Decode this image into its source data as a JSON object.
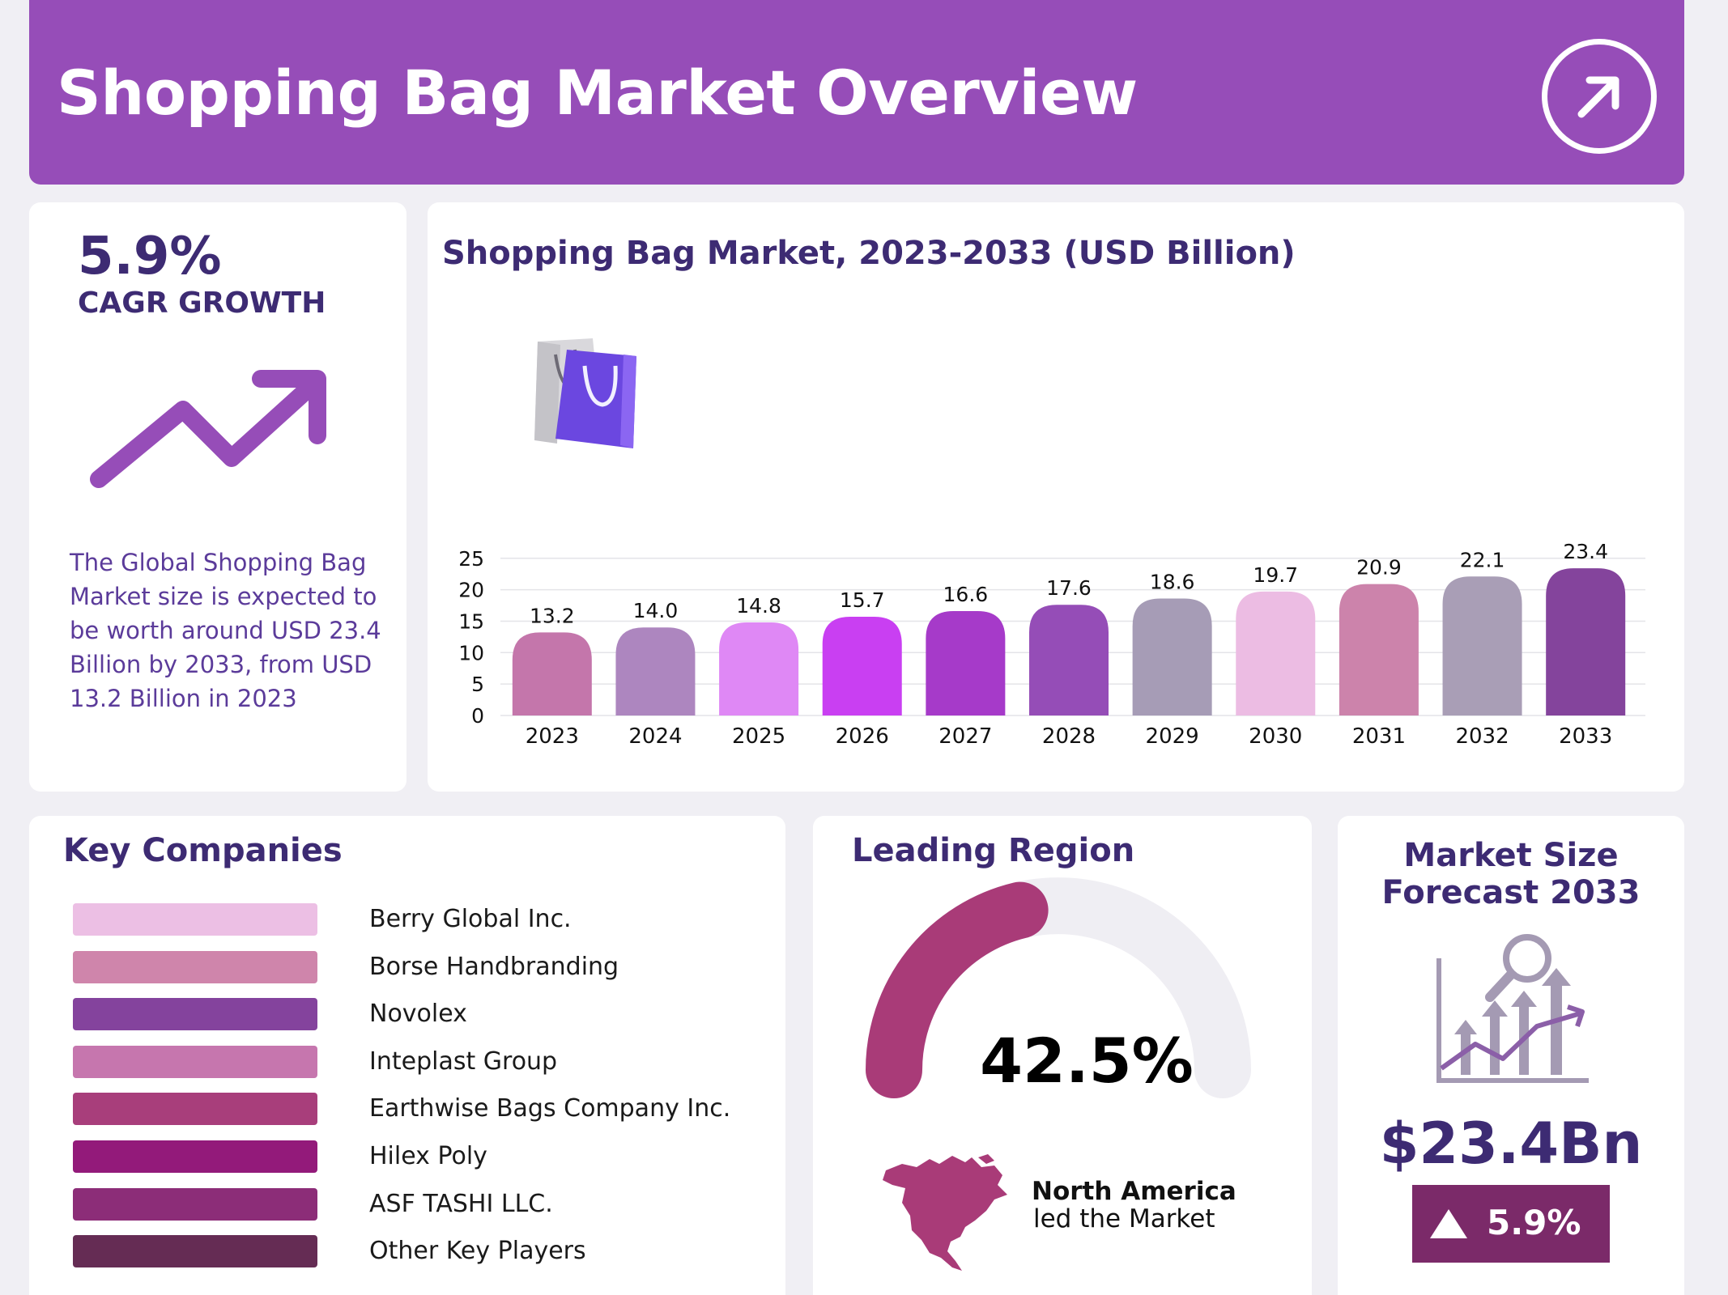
{
  "header": {
    "title": "Shopping Bag Market Overview",
    "icon": "arrow-up-right-icon"
  },
  "cagr": {
    "value": "5.9%",
    "label": "CAGR GROWTH",
    "description": "The Global Shopping Bag Market size is expected to be worth around USD 23.4 Billion by 2033, from USD 13.2 Billion in 2023"
  },
  "chart_data": {
    "type": "bar",
    "title": "Shopping Bag Market, 2023-2033 (USD Billion)",
    "categories": [
      "2023",
      "2024",
      "2025",
      "2026",
      "2027",
      "2028",
      "2029",
      "2030",
      "2031",
      "2032",
      "2033"
    ],
    "values": [
      13.2,
      14.0,
      14.8,
      15.7,
      16.6,
      17.6,
      18.6,
      19.7,
      20.9,
      22.1,
      23.4
    ],
    "value_labels": [
      "13.2",
      "14.0",
      "14.8",
      "15.7",
      "16.6",
      "17.6",
      "18.6",
      "19.7",
      "20.9",
      "22.1",
      "23.4"
    ],
    "bar_colors": [
      "#c476ab",
      "#ad86bf",
      "#df88f5",
      "#c93ff2",
      "#a63ac9",
      "#954db7",
      "#a69cb6",
      "#ecbce3",
      "#cc83ab",
      "#a99eb6",
      "#84449c"
    ],
    "yticks": [
      "0",
      "5",
      "10",
      "15",
      "20",
      "25"
    ],
    "ylim": [
      0,
      25
    ],
    "xlabel": "",
    "ylabel": "",
    "grid": true
  },
  "companies": {
    "title": "Key Companies",
    "items": [
      {
        "name": "Berry Global Inc.",
        "color": "#ecbfe4"
      },
      {
        "name": "Borse Handbranding",
        "color": "#cf85ab"
      },
      {
        "name": "Novolex",
        "color": "#84439d"
      },
      {
        "name": "Inteplast Group",
        "color": "#c676ae"
      },
      {
        "name": "Earthwise Bags Company Inc.",
        "color": "#a83e7b"
      },
      {
        "name": "Hilex Poly",
        "color": "#931a7a"
      },
      {
        "name": "ASF TASHI LLC.",
        "color": "#8c2d78"
      },
      {
        "name": "Other Key Players",
        "color": "#652c54"
      }
    ]
  },
  "region": {
    "title": "Leading Region",
    "value": "42.5%",
    "share": 0.425,
    "name": "North America",
    "subtext": "led the Market",
    "gauge_color": "#a93b78",
    "track_color": "#efeef3"
  },
  "forecast": {
    "title_line1": "Market Size",
    "title_line2": "Forecast 2033",
    "value": "$23.4Bn",
    "badge": "5.9%",
    "badge_color": "#7b2a69"
  }
}
